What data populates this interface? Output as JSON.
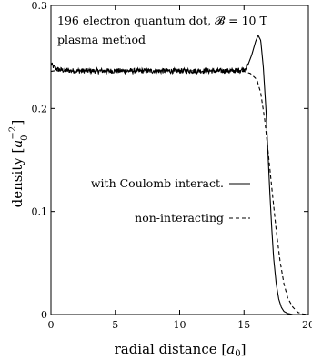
{
  "chart_data": {
    "type": "line",
    "annotations": [
      "196 electron quantum dot, 𝓑 = 10 T",
      "plasma method"
    ],
    "xlabel": "radial distance",
    "xlabel_unit_base": "a",
    "xlabel_unit_sub": "0",
    "ylabel": "density",
    "ylabel_unit_base": "a",
    "ylabel_unit_sub": "0",
    "ylabel_unit_sup": "−2",
    "xlim": [
      0,
      20
    ],
    "ylim": [
      0,
      0.3
    ],
    "xticks": [
      0,
      5,
      10,
      15,
      20
    ],
    "xtick_labels": [
      "0",
      "5",
      "10",
      "15",
      "20"
    ],
    "yticks": [
      0,
      0.1,
      0.2,
      0.3
    ],
    "ytick_labels": [
      "0",
      "0.1",
      "0.2",
      "0.3"
    ],
    "grid": false,
    "legend_position": "middle-right",
    "series": [
      {
        "name": "with Coulomb interact.",
        "line_style": "solid",
        "color": "#000000",
        "x": [
          0,
          0.25,
          0.5,
          1,
          2,
          4,
          6,
          8,
          10,
          12,
          13,
          14,
          14.5,
          15,
          15.3,
          15.6,
          15.9,
          16.1,
          16.3,
          16.5,
          16.7,
          16.85,
          17,
          17.15,
          17.3,
          17.5,
          17.7,
          17.9,
          18.1,
          18.4,
          18.8,
          19.3,
          20
        ],
        "y": [
          0.243,
          0.24,
          0.238,
          0.237,
          0.2365,
          0.2365,
          0.2365,
          0.2365,
          0.2365,
          0.2365,
          0.2365,
          0.2365,
          0.237,
          0.238,
          0.242,
          0.252,
          0.265,
          0.271,
          0.266,
          0.24,
          0.2,
          0.16,
          0.12,
          0.085,
          0.055,
          0.03,
          0.015,
          0.007,
          0.003,
          0.001,
          0,
          0,
          0
        ],
        "noise_amplitude": 0.0025,
        "noise_range": [
          0,
          15.3
        ]
      },
      {
        "name": "non-interacting",
        "line_style": "dashed",
        "color": "#000000",
        "x": [
          0,
          0.25,
          0.5,
          1,
          2,
          4,
          6,
          8,
          10,
          12,
          14,
          15,
          15.5,
          16,
          16.3,
          16.6,
          16.9,
          17.2,
          17.5,
          17.8,
          18.1,
          18.4,
          18.8,
          19.2,
          19.6,
          20
        ],
        "y": [
          0.236,
          0.2365,
          0.2365,
          0.2365,
          0.2365,
          0.2365,
          0.2365,
          0.2365,
          0.2365,
          0.2365,
          0.2365,
          0.236,
          0.234,
          0.228,
          0.215,
          0.19,
          0.155,
          0.118,
          0.082,
          0.052,
          0.03,
          0.016,
          0.007,
          0.002,
          0.0005,
          0
        ]
      }
    ]
  }
}
